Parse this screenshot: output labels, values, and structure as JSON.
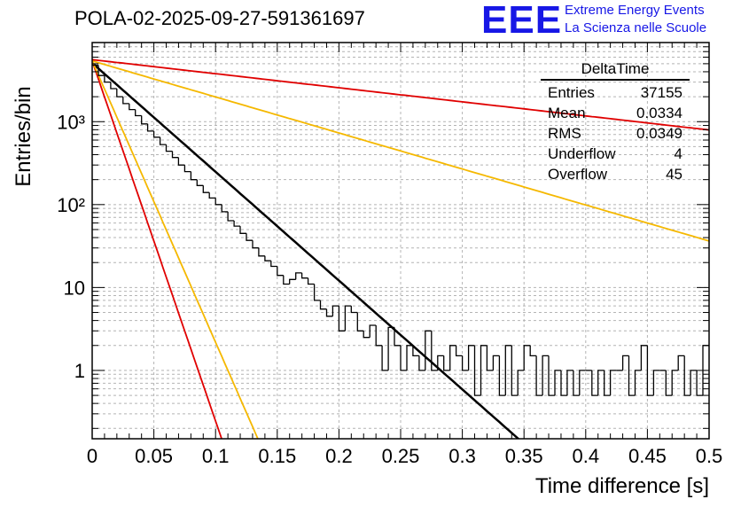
{
  "header": {
    "title": "POLA-02-2025-09-27-591361697",
    "logo": "EEE",
    "logo_line1": "Extreme Energy Events",
    "logo_line2": "La Scienza nelle Scuole"
  },
  "stats": {
    "title": "DeltaTime",
    "rows": [
      {
        "label": "Entries",
        "value": "37155"
      },
      {
        "label": "Mean",
        "value": "0.0334"
      },
      {
        "label": "RMS",
        "value": "0.0349"
      },
      {
        "label": "Underflow",
        "value": "4"
      },
      {
        "label": "Overflow",
        "value": "45"
      }
    ]
  },
  "colors": {
    "histogram": "#000000",
    "fit": "#000000",
    "red": "#e00000",
    "yellow": "#f5b800",
    "grid": "#b4b4b4"
  },
  "chart_data": {
    "type": "histogram",
    "title": "POLA-02-2025-09-27-591361697",
    "xlabel": "Time difference [s]",
    "ylabel": "Entries/bin",
    "xlim": [
      0,
      0.5
    ],
    "ylim": [
      0.15,
      9000
    ],
    "yscale": "log",
    "grid": true,
    "xticks": [
      0,
      0.05,
      0.1,
      0.15,
      0.2,
      0.25,
      0.3,
      0.35,
      0.4,
      0.45,
      0.5
    ],
    "xtick_labels": [
      "0",
      "0.05",
      "0.1",
      "0.15",
      "0.2",
      "0.25",
      "0.3",
      "0.35",
      "0.4",
      "0.45",
      "0.5"
    ],
    "yticks": [
      1,
      10,
      100,
      1000
    ],
    "ytick_labels": [
      "1",
      "10",
      "10²",
      "10³"
    ],
    "bin_width": 0.005,
    "bin_values": [
      4800,
      3600,
      3000,
      2500,
      2000,
      1650,
      1400,
      1180,
      940,
      770,
      650,
      530,
      440,
      370,
      300,
      250,
      200,
      170,
      140,
      120,
      100,
      82,
      64,
      55,
      45,
      37,
      30,
      24,
      21,
      18,
      14,
      11,
      12.5,
      15,
      13,
      11,
      7,
      5.5,
      4.5,
      6,
      3,
      6,
      5,
      3,
      2.5,
      3.5,
      2,
      1,
      3.3,
      2,
      1,
      2,
      1.5,
      1,
      3,
      1,
      1.5,
      1,
      2,
      1.5,
      1,
      2,
      0.5,
      2,
      1,
      1.5,
      0.5,
      2,
      0.5,
      1,
      2,
      1.5,
      0.5,
      1.5,
      0.5,
      1,
      0.5,
      1,
      0.5,
      1,
      1,
      0.5,
      1,
      0.5,
      1,
      1,
      1.5,
      0.5,
      1,
      2,
      0.5,
      1,
      1,
      0.5,
      1,
      1.5,
      0.5,
      1,
      0.5,
      2
    ],
    "fits": [
      {
        "name": "fit",
        "color": "#000000",
        "A": 5100,
        "tau": 0.0331
      },
      {
        "name": "red-steep",
        "color": "#e00000",
        "A": 5400,
        "tau": 0.01
      },
      {
        "name": "yellow-steep",
        "color": "#f5b800",
        "A": 5400,
        "tau": 0.0128
      },
      {
        "name": "yellow-slow",
        "color": "#f5b800",
        "A": 5400,
        "tau": 0.1
      },
      {
        "name": "red-slow",
        "color": "#e00000",
        "A": 5600,
        "tau": 0.256
      }
    ]
  }
}
